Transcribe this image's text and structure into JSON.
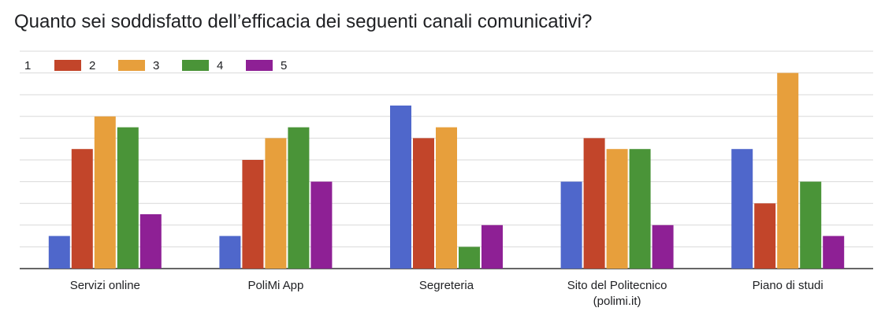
{
  "title": "Quanto sei soddisfatto dell’efficacia dei seguenti canali comunicativi?",
  "chart_data": {
    "type": "bar",
    "title": "Quanto sei soddisfatto dell’efficacia dei seguenti canali comunicativi?",
    "categories": [
      [
        "Servizi online"
      ],
      [
        "PoliMi App"
      ],
      [
        "Segreteria"
      ],
      [
        "Sito del Politecnico",
        "(polimi.it)"
      ],
      [
        "Piano di studi"
      ]
    ],
    "series": [
      {
        "name": "1",
        "color": "#4f67cb",
        "values": [
          3,
          3,
          15,
          8,
          11
        ]
      },
      {
        "name": "2",
        "color": "#c2452a",
        "values": [
          11,
          10,
          12,
          12,
          6
        ]
      },
      {
        "name": "3",
        "color": "#e79f3c",
        "values": [
          14,
          12,
          13,
          11,
          18
        ]
      },
      {
        "name": "4",
        "color": "#4a9438",
        "values": [
          13,
          13,
          2,
          11,
          8
        ]
      },
      {
        "name": "5",
        "color": "#8e2095",
        "values": [
          5,
          8,
          4,
          4,
          3
        ]
      }
    ],
    "ylim": [
      0,
      20
    ],
    "grid": true,
    "legend": "top-left"
  }
}
